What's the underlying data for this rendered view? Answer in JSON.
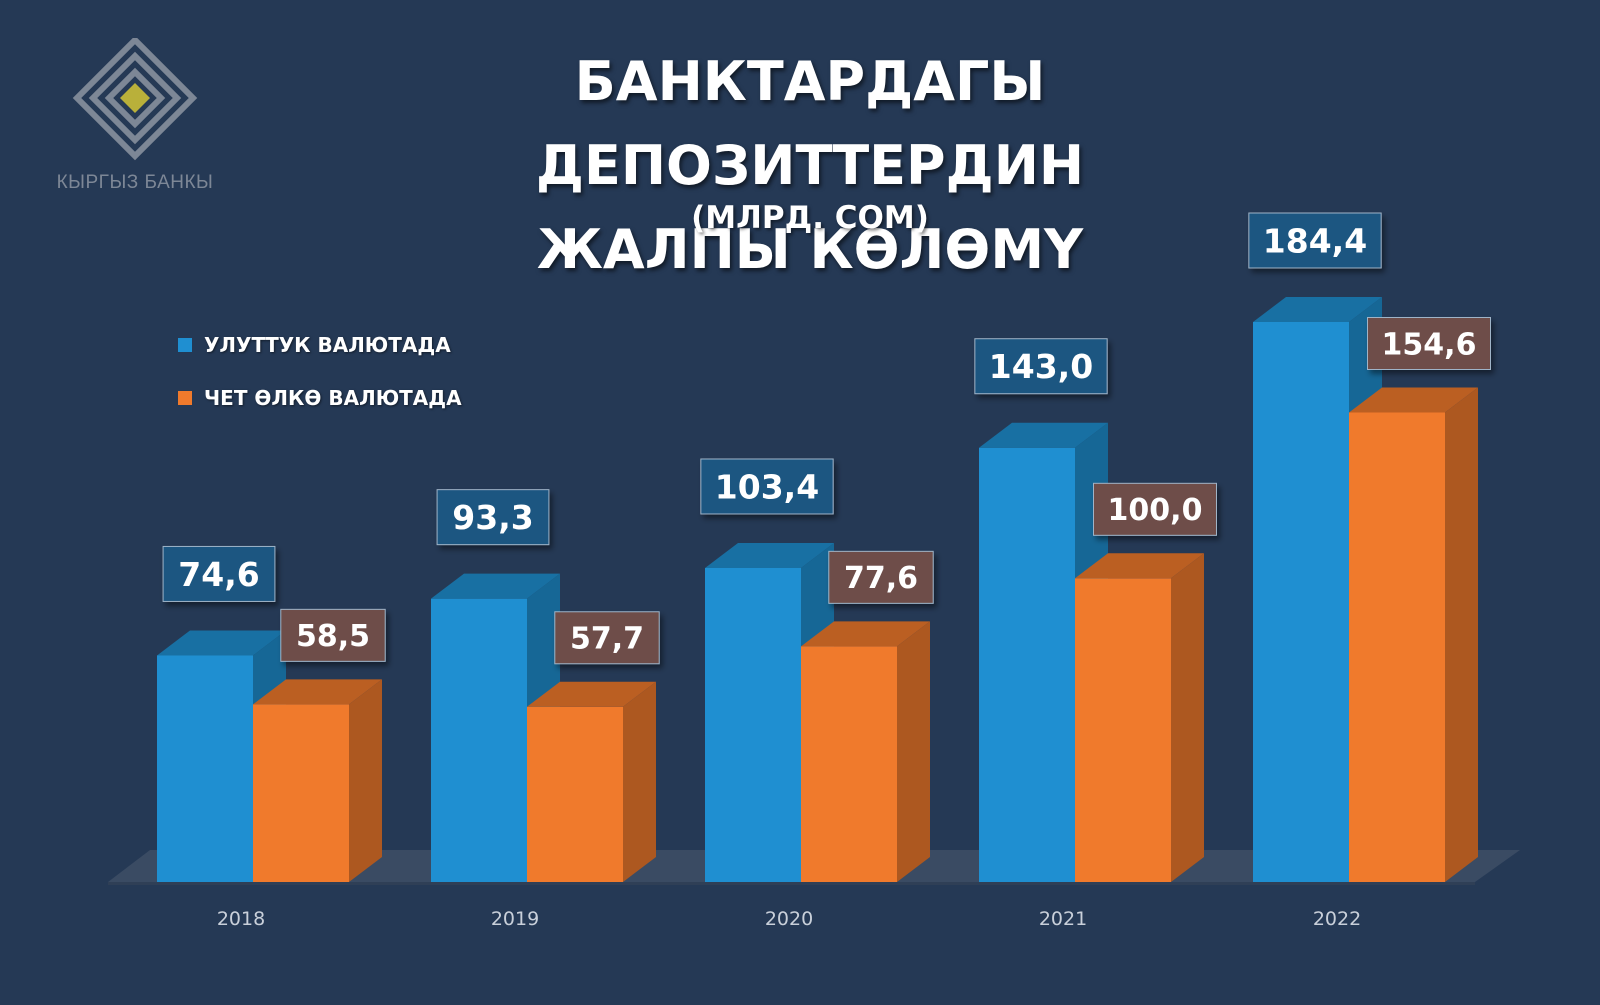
{
  "logo": {
    "text": "КЫРГЫЗ БАНКЫ"
  },
  "title": {
    "line1": "БАНКТАРДАГЫ ДЕПОЗИТТЕРДИН",
    "line2": "ЖАЛПЫ КӨЛӨМҮ"
  },
  "subtitle": "(МЛРД. СОМ)",
  "colors": {
    "background": "#253955",
    "national": "#1f8fd1",
    "foreign": "#f07a2c",
    "foreign_label_bg": "#6e4e48",
    "national_label_bg": "#1e5681"
  },
  "legend": [
    {
      "label": "УЛУТТУК ВАЛЮТАДА",
      "color": "#1f8fd1"
    },
    {
      "label": "ЧЕТ ӨЛКӨ ВАЛЮТАДА",
      "color": "#f07a2c"
    }
  ],
  "chart_data": {
    "type": "bar",
    "categories": [
      "2018",
      "2019",
      "2020",
      "2021",
      "2022"
    ],
    "series": [
      {
        "name": "УЛУТТУК ВАЛЮТАДА",
        "values": [
          74.6,
          93.3,
          103.4,
          143.0,
          184.4
        ],
        "labels": [
          "74,6",
          "93,3",
          "103,4",
          "143,0",
          "184,4"
        ]
      },
      {
        "name": "ЧЕТ ӨЛКӨ ВАЛЮТАДА",
        "values": [
          58.5,
          57.7,
          77.6,
          100.0,
          154.6
        ],
        "labels": [
          "58,5",
          "57,7",
          "77,6",
          "100,0",
          "154,6"
        ]
      }
    ],
    "title": "БАНКТАРДАГЫ ДЕПОЗИТТЕРДИН ЖАЛПЫ КӨЛӨМҮ",
    "subtitle": "(МЛРД. СОМ)",
    "ylim": [
      0,
      184.4
    ],
    "grid": false,
    "legend_position": "top-left"
  }
}
